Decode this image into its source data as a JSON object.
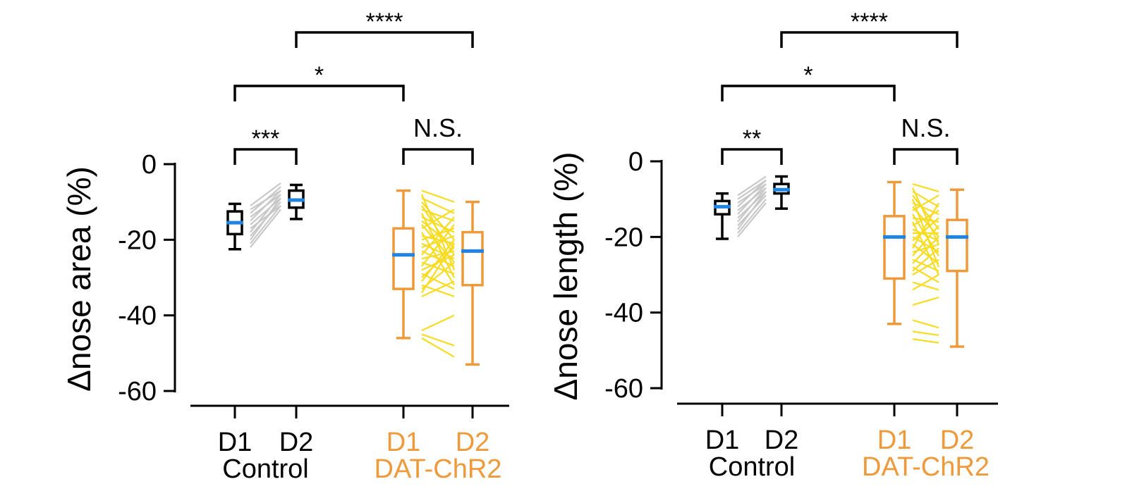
{
  "colors": {
    "control": "#000000",
    "control_lines": "#c8c8c8",
    "chr2": "#ee9a3a",
    "chr2_lines": "#f7dc22",
    "median": "#1f83e0"
  },
  "chart_data": [
    {
      "type": "box",
      "title": "",
      "ylabel": "Δnose area (%)",
      "ylim": [
        -60,
        0
      ],
      "yticks": [
        0,
        -20,
        -40,
        -60
      ],
      "groups": [
        {
          "name": "Control",
          "categories": [
            "D1",
            "D2"
          ],
          "boxes": [
            {
              "category": "D1",
              "min": -22.5,
              "q1": -18.5,
              "median": -15.5,
              "q3": -12.5,
              "max": -10.5
            },
            {
              "category": "D2",
              "min": -14.5,
              "q1": -11.5,
              "median": -9.5,
              "q3": -7.0,
              "max": -5.5
            }
          ],
          "paired": [
            [
              -22,
              -12
            ],
            [
              -21,
              -11
            ],
            [
              -20,
              -9
            ],
            [
              -19,
              -10
            ],
            [
              -18,
              -8
            ],
            [
              -17,
              -11
            ],
            [
              -16,
              -9
            ],
            [
              -15,
              -7
            ],
            [
              -14,
              -8
            ],
            [
              -13,
              -6
            ],
            [
              -12,
              -7
            ],
            [
              -11,
              -5
            ]
          ]
        },
        {
          "name": "DAT-ChR2",
          "categories": [
            "D1",
            "D2"
          ],
          "boxes": [
            {
              "category": "D1",
              "min": -46,
              "q1": -33,
              "median": -24,
              "q3": -17,
              "max": -7
            },
            {
              "category": "D2",
              "min": -53,
              "q1": -32,
              "median": -23,
              "q3": -18,
              "max": -10
            }
          ],
          "paired": [
            [
              -7,
              -10
            ],
            [
              -8,
              -28
            ],
            [
              -9,
              -13
            ],
            [
              -10,
              -20
            ],
            [
              -11,
              -24
            ],
            [
              -12,
              -15
            ],
            [
              -13,
              -30
            ],
            [
              -14,
              -18
            ],
            [
              -15,
              -22
            ],
            [
              -16,
              -26
            ],
            [
              -17,
              -12
            ],
            [
              -18,
              -32
            ],
            [
              -19,
              -21
            ],
            [
              -20,
              -17
            ],
            [
              -21,
              -25
            ],
            [
              -22,
              -19
            ],
            [
              -23,
              -27
            ],
            [
              -24,
              -14
            ],
            [
              -25,
              -23
            ],
            [
              -26,
              -29
            ],
            [
              -27,
              -16
            ],
            [
              -28,
              -24
            ],
            [
              -29,
              -33
            ],
            [
              -30,
              -22
            ],
            [
              -31,
              -20
            ],
            [
              -32,
              -35
            ],
            [
              -33,
              -26
            ],
            [
              -34,
              -21
            ],
            [
              -35,
              -31
            ],
            [
              -44,
              -40
            ],
            [
              -45,
              -48
            ],
            [
              -46,
              -51
            ]
          ]
        }
      ],
      "comparisons": [
        {
          "groups": [
            "Control D1",
            "Control D2"
          ],
          "label": "***"
        },
        {
          "groups": [
            "DAT-ChR2 D1",
            "DAT-ChR2 D2"
          ],
          "label": "N.S."
        },
        {
          "groups": [
            "Control D1",
            "DAT-ChR2 D1"
          ],
          "label": "*"
        },
        {
          "groups": [
            "Control D2",
            "DAT-ChR2 D2"
          ],
          "label": "****"
        }
      ]
    },
    {
      "type": "box",
      "title": "",
      "ylabel": "Δnose length (%)",
      "ylim": [
        -60,
        0
      ],
      "yticks": [
        0,
        -20,
        -40,
        -60
      ],
      "groups": [
        {
          "name": "Control",
          "categories": [
            "D1",
            "D2"
          ],
          "boxes": [
            {
              "category": "D1",
              "min": -20.5,
              "q1": -14,
              "median": -12,
              "q3": -10.5,
              "max": -8.5
            },
            {
              "category": "D2",
              "min": -12.5,
              "q1": -8.5,
              "median": -7.5,
              "q3": -6.0,
              "max": -4.0
            }
          ],
          "paired": [
            [
              -20,
              -11
            ],
            [
              -19,
              -10
            ],
            [
              -18,
              -8
            ],
            [
              -17,
              -9
            ],
            [
              -16,
              -7
            ],
            [
              -15,
              -8
            ],
            [
              -14,
              -6
            ],
            [
              -13,
              -7
            ],
            [
              -12,
              -5
            ],
            [
              -11,
              -6
            ],
            [
              -10,
              -5
            ],
            [
              -9,
              -4
            ]
          ]
        },
        {
          "name": "DAT-ChR2",
          "categories": [
            "D1",
            "D2"
          ],
          "boxes": [
            {
              "category": "D1",
              "min": -43,
              "q1": -31,
              "median": -20,
              "q3": -14.5,
              "max": -5.5
            },
            {
              "category": "D2",
              "min": -49,
              "q1": -29,
              "median": -20,
              "q3": -15.5,
              "max": -7.5
            }
          ],
          "paired": [
            [
              -6,
              -8
            ],
            [
              -7,
              -22
            ],
            [
              -8,
              -12
            ],
            [
              -9,
              -18
            ],
            [
              -10,
              -28
            ],
            [
              -11,
              -14
            ],
            [
              -12,
              -20
            ],
            [
              -13,
              -9
            ],
            [
              -14,
              -25
            ],
            [
              -15,
              -16
            ],
            [
              -16,
              -30
            ],
            [
              -17,
              -13
            ],
            [
              -18,
              -21
            ],
            [
              -19,
              -19
            ],
            [
              -20,
              -24
            ],
            [
              -21,
              -15
            ],
            [
              -22,
              -27
            ],
            [
              -23,
              -11
            ],
            [
              -24,
              -22
            ],
            [
              -25,
              -17
            ],
            [
              -26,
              -29
            ],
            [
              -27,
              -20
            ],
            [
              -28,
              -32
            ],
            [
              -29,
              -23
            ],
            [
              -30,
              -26
            ],
            [
              -32,
              -34
            ],
            [
              -34,
              -30
            ],
            [
              -38,
              -36
            ],
            [
              -42,
              -44
            ],
            [
              -45,
              -46
            ],
            [
              -47,
              -48
            ]
          ]
        }
      ],
      "comparisons": [
        {
          "groups": [
            "Control D1",
            "Control D2"
          ],
          "label": "**"
        },
        {
          "groups": [
            "DAT-ChR2 D1",
            "DAT-ChR2 D2"
          ],
          "label": "N.S."
        },
        {
          "groups": [
            "Control D1",
            "DAT-ChR2 D1"
          ],
          "label": "*"
        },
        {
          "groups": [
            "Control D2",
            "DAT-ChR2 D2"
          ],
          "label": "****"
        }
      ]
    }
  ]
}
